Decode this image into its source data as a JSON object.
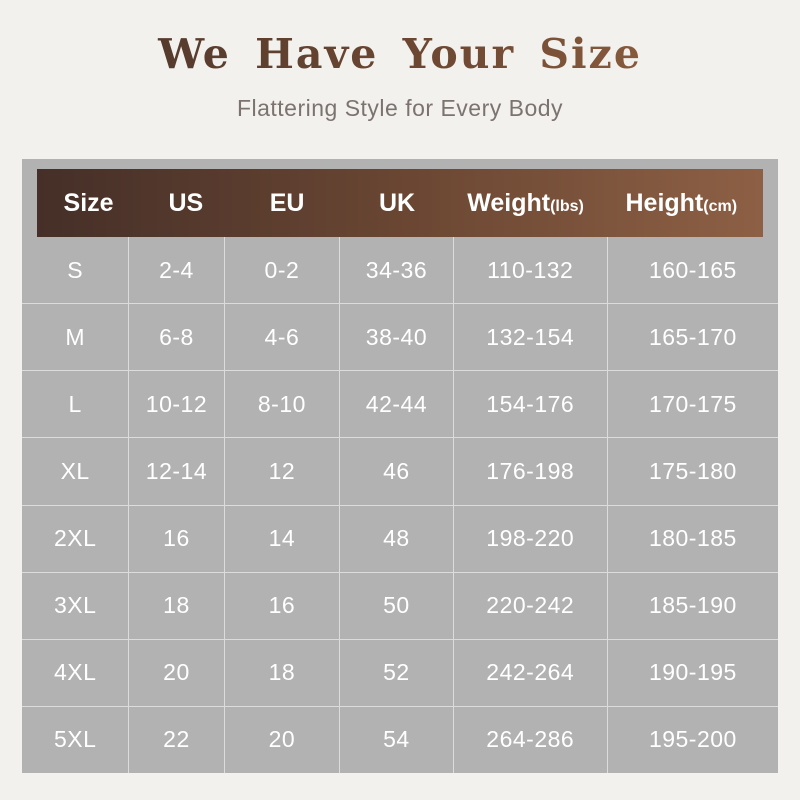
{
  "page": {
    "background_color": "#f2f1ee"
  },
  "header": {
    "title": "We Have Your Size",
    "subtitle": "Flattering Style for Every Body",
    "title_color_start": "#553a2c",
    "title_color_end": "#8e5f3e",
    "subtitle_color": "#7c736f"
  },
  "chart_data": {
    "type": "table",
    "title": "We Have Your Size",
    "subtitle": "Flattering Style for Every Body",
    "panel_color": "#b2b2b2",
    "header_gradient": [
      "#452f28",
      "#8d6045"
    ],
    "header_text_color": "#ffffff",
    "cell_text_color": "#ffffff",
    "columns": [
      {
        "label": "Size",
        "unit": ""
      },
      {
        "label": "US",
        "unit": ""
      },
      {
        "label": "EU",
        "unit": ""
      },
      {
        "label": "UK",
        "unit": ""
      },
      {
        "label": "Weight",
        "unit": "(lbs)"
      },
      {
        "label": "Height",
        "unit": "(cm)"
      }
    ],
    "rows": [
      [
        "S",
        "2-4",
        "0-2",
        "34-36",
        "110-132",
        "160-165"
      ],
      [
        "M",
        "6-8",
        "4-6",
        "38-40",
        "132-154",
        "165-170"
      ],
      [
        "L",
        "10-12",
        "8-10",
        "42-44",
        "154-176",
        "170-175"
      ],
      [
        "XL",
        "12-14",
        "12",
        "46",
        "176-198",
        "175-180"
      ],
      [
        "2XL",
        "16",
        "14",
        "48",
        "198-220",
        "180-185"
      ],
      [
        "3XL",
        "18",
        "16",
        "50",
        "220-242",
        "185-190"
      ],
      [
        "4XL",
        "20",
        "18",
        "52",
        "242-264",
        "190-195"
      ],
      [
        "5XL",
        "22",
        "20",
        "54",
        "264-286",
        "195-200"
      ]
    ]
  }
}
